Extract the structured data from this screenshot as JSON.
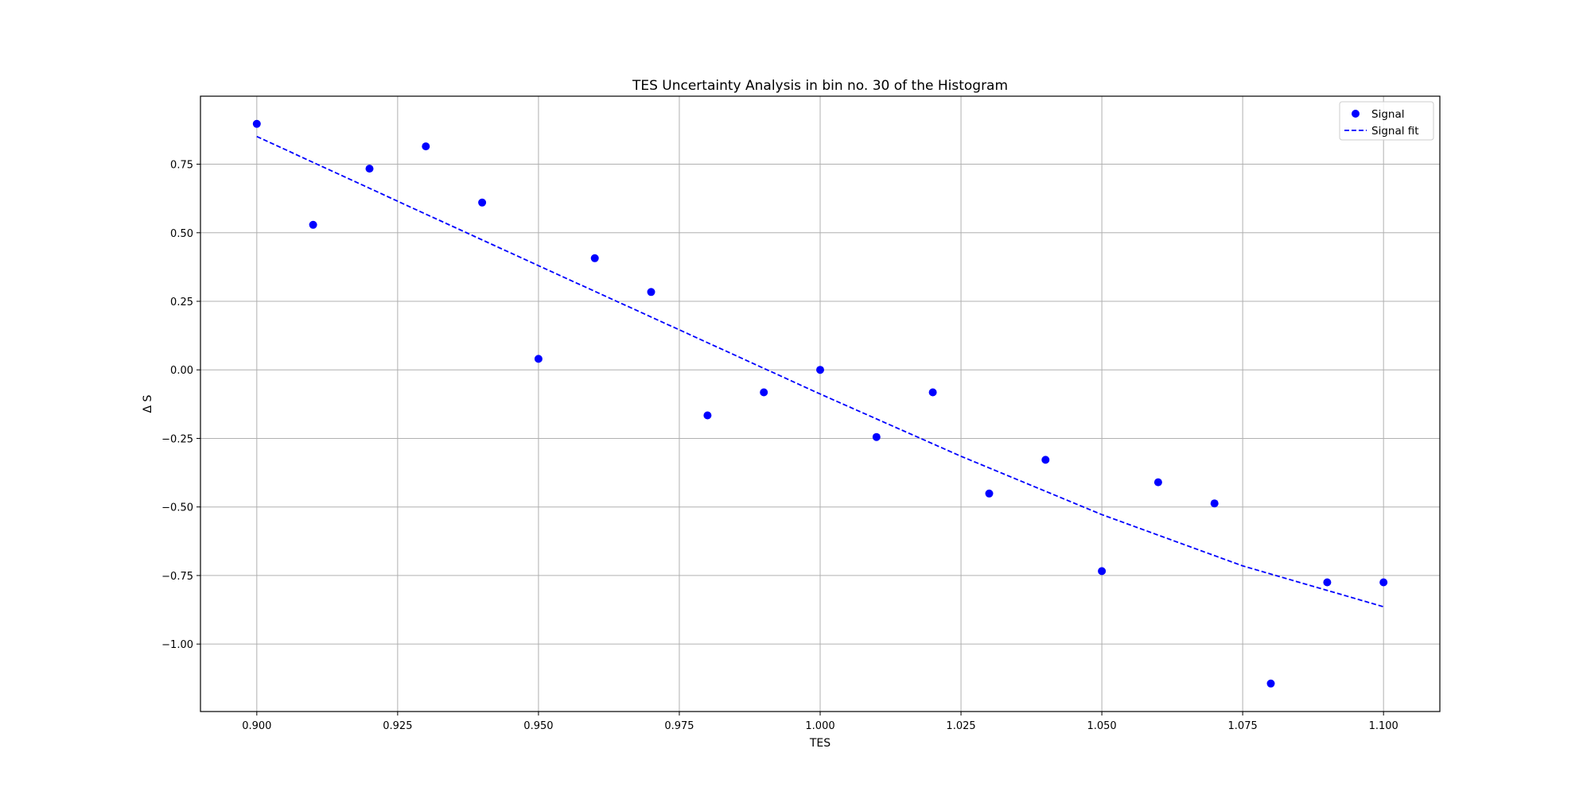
{
  "chart_data": {
    "type": "scatter",
    "title": "TES Uncertainty Analysis in bin no. 30 of the Histogram",
    "xlabel": "TES",
    "ylabel": "Δ S",
    "xlim": [
      0.89,
      1.11
    ],
    "ylim": [
      -1.246,
      0.998
    ],
    "x_ticks": [
      0.9,
      0.925,
      0.95,
      0.975,
      1.0,
      1.025,
      1.05,
      1.075,
      1.1
    ],
    "x_tick_labels": [
      "0.900",
      "0.925",
      "0.950",
      "0.975",
      "1.000",
      "1.025",
      "1.050",
      "1.075",
      "1.100"
    ],
    "y_ticks": [
      -1.0,
      -0.75,
      -0.5,
      -0.25,
      0.0,
      0.25,
      0.5,
      0.75
    ],
    "y_tick_labels": [
      "−1.00",
      "−0.75",
      "−0.50",
      "−0.25",
      "0.00",
      "0.25",
      "0.50",
      "0.75"
    ],
    "grid": true,
    "legend_position": "top-right",
    "series": [
      {
        "name": "Signal",
        "kind": "scatter",
        "color": "#0000ff",
        "x": [
          0.9,
          0.91,
          0.92,
          0.93,
          0.94,
          0.95,
          0.96,
          0.97,
          0.98,
          0.99,
          1.0,
          1.01,
          1.02,
          1.03,
          1.04,
          1.05,
          1.06,
          1.07,
          1.08,
          1.09,
          1.1
        ],
        "y": [
          0.897,
          0.529,
          0.734,
          0.815,
          0.61,
          0.04,
          0.407,
          0.284,
          -0.166,
          -0.082,
          0.0,
          -0.245,
          -0.082,
          -0.451,
          -0.328,
          -0.734,
          -0.41,
          -0.487,
          -1.144,
          -0.775,
          -0.775
        ]
      },
      {
        "name": "Signal fit",
        "kind": "line",
        "style": "dashed",
        "color": "#0000ff",
        "x": [
          0.9,
          0.925,
          0.95,
          0.975,
          1.0,
          1.025,
          1.05,
          1.075,
          1.1
        ],
        "y": [
          0.851,
          0.615,
          0.38,
          0.146,
          -0.088,
          -0.315,
          -0.528,
          -0.715,
          -0.864
        ]
      }
    ]
  }
}
